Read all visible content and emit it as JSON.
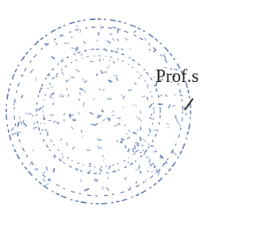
{
  "text": "Prof.s"
}
